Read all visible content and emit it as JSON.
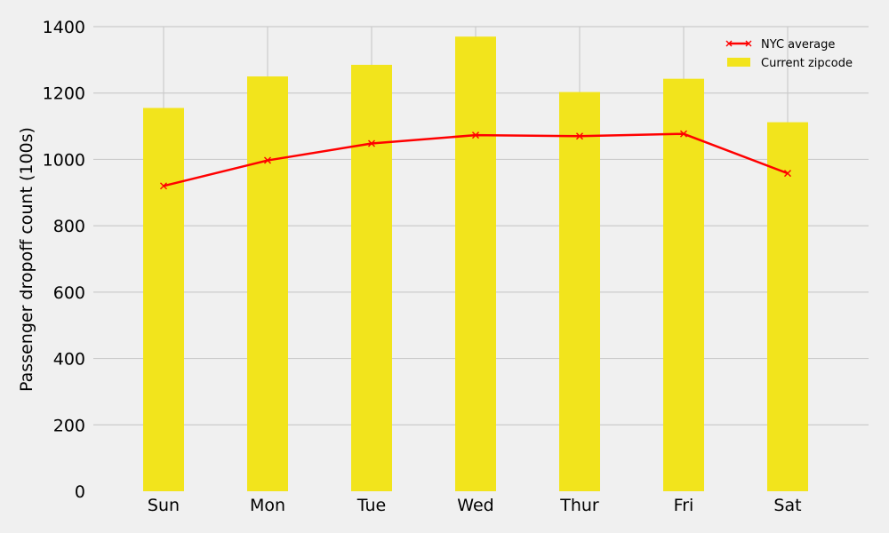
{
  "chart_data": {
    "type": "bar",
    "categories": [
      "Sun",
      "Mon",
      "Tue",
      "Wed",
      "Thur",
      "Fri",
      "Sat"
    ],
    "series": [
      {
        "name": "Current zipcode",
        "type": "bar",
        "color": "#f2e41c",
        "values": [
          1155,
          1250,
          1285,
          1370,
          1203,
          1243,
          1112
        ]
      },
      {
        "name": "NYC average",
        "type": "line",
        "color": "#ff0000",
        "marker": "x",
        "values": [
          920,
          997,
          1048,
          1073,
          1070,
          1077,
          958
        ]
      }
    ],
    "title": "",
    "xlabel": "",
    "ylabel": "Passenger dropoff count (100s)",
    "ylim": [
      0,
      1400
    ],
    "yticks": [
      "0",
      "200",
      "400",
      "600",
      "800",
      "1000",
      "1200",
      "1400"
    ],
    "grid": true,
    "legend_position": "top-right",
    "colors": {
      "background": "#f0f0f0",
      "grid": "#cbcbcb"
    }
  }
}
